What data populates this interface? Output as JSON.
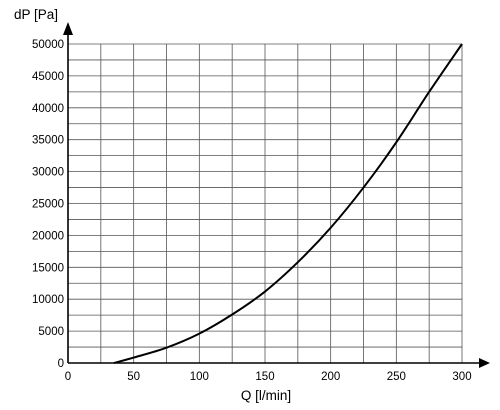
{
  "chart_data": {
    "type": "line",
    "xlabel": "Q [l/min]",
    "ylabel": "dP [Pa]",
    "xlim": [
      0,
      300
    ],
    "ylim": [
      0,
      50000
    ],
    "x_ticks": [
      0,
      50,
      100,
      150,
      200,
      250,
      300
    ],
    "y_ticks": [
      0,
      5000,
      10000,
      15000,
      20000,
      25000,
      30000,
      35000,
      40000,
      45000,
      50000
    ],
    "grid": true,
    "grid_x_step": 25,
    "grid_y_step": 2500,
    "series": [
      {
        "name": "",
        "color": "#000000",
        "x": [
          35,
          50,
          75,
          100,
          125,
          150,
          175,
          200,
          225,
          250,
          275,
          300
        ],
        "y": [
          0,
          850,
          2400,
          4600,
          7600,
          11200,
          15800,
          21200,
          27500,
          34600,
          42500,
          50000
        ]
      }
    ]
  }
}
